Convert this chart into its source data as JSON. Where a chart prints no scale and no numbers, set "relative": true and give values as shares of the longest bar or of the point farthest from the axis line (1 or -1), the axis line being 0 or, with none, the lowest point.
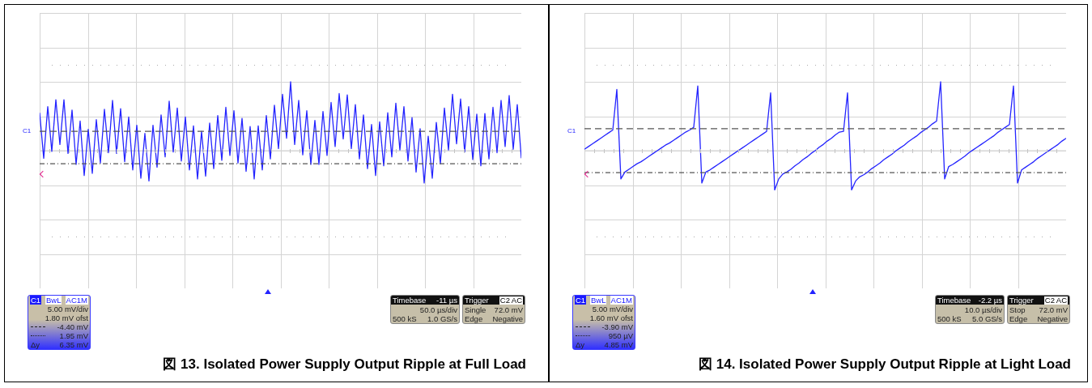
{
  "chart_data": [
    {
      "type": "line",
      "title": "図 13. Isolated Power Supply Output Ripple at Full Load",
      "relative": true,
      "grid": true,
      "marker": "none",
      "line_style": "solid",
      "categories": [
        null,
        null,
        null,
        null,
        null,
        null,
        null,
        null,
        null,
        null,
        null,
        null,
        null,
        null,
        null,
        null,
        null,
        null,
        null,
        null,
        null,
        null,
        null,
        null,
        null,
        null,
        null,
        null,
        null,
        null,
        null,
        null,
        null,
        null,
        null,
        null,
        null,
        null,
        null,
        null,
        null,
        null,
        null,
        null,
        null,
        null,
        null,
        null,
        null,
        null,
        null,
        null,
        null,
        null,
        null,
        null,
        null,
        null,
        null,
        null,
        null,
        null,
        null,
        null,
        null,
        null,
        null,
        null,
        null,
        null,
        null,
        null,
        null,
        null,
        null,
        null,
        null,
        null,
        null,
        null,
        null,
        null,
        null,
        null,
        null,
        null,
        null,
        null,
        null,
        null,
        null,
        null,
        null,
        null,
        null,
        null,
        null,
        null,
        null,
        null,
        null,
        null,
        null,
        null,
        null,
        null,
        null,
        null,
        null,
        null,
        null,
        null,
        null,
        null,
        null,
        null,
        null,
        null,
        null,
        null
      ],
      "series": [
        {
          "color": "#2424ff",
          "values": [
            0.55,
            -0.11,
            0.64,
            -0.01,
            0.74,
            0.09,
            0.74,
            -0.04,
            0.59,
            -0.2,
            0.43,
            -0.36,
            0.31,
            -0.33,
            0.45,
            -0.18,
            0.6,
            -0.03,
            0.73,
            -0.04,
            0.61,
            -0.16,
            0.49,
            -0.28,
            0.37,
            -0.4,
            0.25,
            -0.44,
            0.37,
            -0.24,
            0.52,
            -0.09,
            0.72,
            -0.02,
            0.62,
            -0.15,
            0.49,
            -0.28,
            0.36,
            -0.41,
            0.28,
            -0.37,
            0.4,
            -0.26,
            0.51,
            -0.14,
            0.63,
            -0.07,
            0.58,
            -0.18,
            0.47,
            -0.3,
            0.35,
            -0.41,
            0.36,
            -0.28,
            0.51,
            -0.12,
            0.66,
            0.03,
            0.82,
            0.18,
            1,
            0.09,
            0.73,
            -0.06,
            0.58,
            -0.2,
            0.44,
            -0.2,
            0.57,
            -0.07,
            0.7,
            0.06,
            0.83,
            0.17,
            0.81,
            0.03,
            0.67,
            -0.12,
            0.52,
            -0.26,
            0.38,
            -0.36,
            0.42,
            -0.22,
            0.55,
            -0.09,
            0.69,
            0.01,
            0.64,
            -0.15,
            0.48,
            -0.31,
            0.32,
            -0.47,
            0.21,
            -0.4,
            0.41,
            -0.19,
            0.62,
            0.01,
            0.82,
            0.1,
            0.75,
            -0.02,
            0.64,
            -0.13,
            0.53,
            -0.22,
            0.54,
            -0.12,
            0.63,
            -0.03,
            0.73,
            0.06,
            0.8,
            0.02,
            0.67,
            -0.11
          ]
        }
      ],
      "ref_lines": [
        {
          "axis": "y",
          "value": 0.28,
          "color": "#555555",
          "line_style": "dashed"
        },
        {
          "axis": "y",
          "value": -0.19,
          "color": "#555555",
          "line_style": "dotted"
        }
      ],
      "annotations": [
        "C1",
        "BwL",
        "AC1M",
        "5.00 mV/div",
        "1.80 mV ofst",
        "-4.40 mV",
        "1.95 mV",
        "Δy",
        "6.35 mV",
        "Timebase",
        "-11 µs",
        "50.0 µs/div",
        "500 kS",
        "1.0 GS/s",
        "Trigger",
        "C2",
        "AC",
        "Single",
        "72.0 mV",
        "Edge",
        "Negative",
        "C1"
      ]
    },
    {
      "type": "line",
      "title": "図 14. Isolated Power Supply Output Ripple at Light Load",
      "relative": true,
      "grid": true,
      "marker": "none",
      "line_style": "solid",
      "categories": [
        null,
        null,
        null,
        null,
        null,
        null,
        null,
        null,
        null,
        null,
        null,
        null,
        null,
        null,
        null,
        null,
        null,
        null,
        null,
        null,
        null,
        null,
        null,
        null,
        null,
        null,
        null,
        null,
        null,
        null,
        null,
        null,
        null,
        null,
        null,
        null,
        null,
        null,
        null,
        null,
        null,
        null,
        null,
        null,
        null,
        null,
        null,
        null,
        null,
        null,
        null,
        null,
        null,
        null,
        null,
        null,
        null,
        null,
        null,
        null,
        null,
        null,
        null,
        null,
        null,
        null,
        null,
        null,
        null,
        null,
        null,
        null,
        null,
        null,
        null,
        null,
        null,
        null,
        null,
        null,
        null,
        null,
        null,
        null,
        null,
        null,
        null,
        null,
        null,
        null,
        null,
        null,
        null,
        null,
        null,
        null,
        null,
        null,
        null,
        null,
        null,
        null,
        null,
        null,
        null,
        null,
        null,
        null,
        null,
        null,
        null,
        null,
        null,
        null,
        null,
        null,
        null,
        null,
        null,
        null
      ],
      "series": [
        {
          "color": "#2424ff",
          "values": [
            0.02,
            0.06,
            0.1,
            0.14,
            0.18,
            0.22,
            0.26,
            0.3,
            0.89,
            -0.41,
            -0.31,
            -0.27,
            -0.23,
            -0.19,
            -0.16,
            -0.12,
            -0.08,
            -0.04,
            0,
            0.04,
            0.08,
            0.11,
            0.15,
            0.19,
            0.23,
            0.27,
            0.3,
            0.34,
            0.94,
            -0.47,
            -0.31,
            -0.28,
            -0.24,
            -0.2,
            -0.16,
            -0.12,
            -0.08,
            -0.04,
            0,
            0.04,
            0.08,
            0.12,
            0.16,
            0.2,
            0.24,
            0.28,
            0.84,
            -0.57,
            -0.41,
            -0.34,
            -0.31,
            -0.27,
            -0.22,
            -0.18,
            -0.13,
            -0.09,
            -0.04,
            0,
            0.05,
            0.09,
            0.14,
            0.18,
            0.23,
            0.27,
            0.28,
            0.84,
            -0.57,
            -0.44,
            -0.38,
            -0.35,
            -0.31,
            -0.26,
            -0.22,
            -0.18,
            -0.13,
            -0.09,
            -0.05,
            0,
            0.04,
            0.08,
            0.13,
            0.17,
            0.21,
            0.26,
            0.3,
            0.34,
            0.39,
            0.43,
            1,
            -0.41,
            -0.23,
            -0.2,
            -0.16,
            -0.12,
            -0.08,
            -0.03,
            0.01,
            0.05,
            0.09,
            0.13,
            0.17,
            0.21,
            0.26,
            0.3,
            0.34,
            0.38,
            0.94,
            -0.47,
            -0.28,
            -0.24,
            -0.2,
            -0.16,
            -0.11,
            -0.07,
            -0.03,
            0.01,
            0.05,
            0.09,
            0.14,
            0.18
          ]
        }
      ],
      "ref_lines": [
        {
          "axis": "y",
          "value": 0.32,
          "color": "#555555",
          "line_style": "dashed"
        },
        {
          "axis": "y",
          "value": -0.32,
          "color": "#555555",
          "line_style": "dotted"
        }
      ],
      "annotations": [
        "C1",
        "BwL",
        "AC1M",
        "5.00 mV/div",
        "1.60 mV ofst",
        "-3.90 mV",
        "950 µV",
        "Δy",
        "4.85 mV",
        "Timebase",
        "-2.2 µs",
        "10.0 µs/div",
        "500 kS",
        "5.0 GS/s",
        "Trigger",
        "C2",
        "AC",
        "Stop",
        "72.0 mV",
        "Edge",
        "Negative",
        "C1"
      ]
    }
  ]
}
